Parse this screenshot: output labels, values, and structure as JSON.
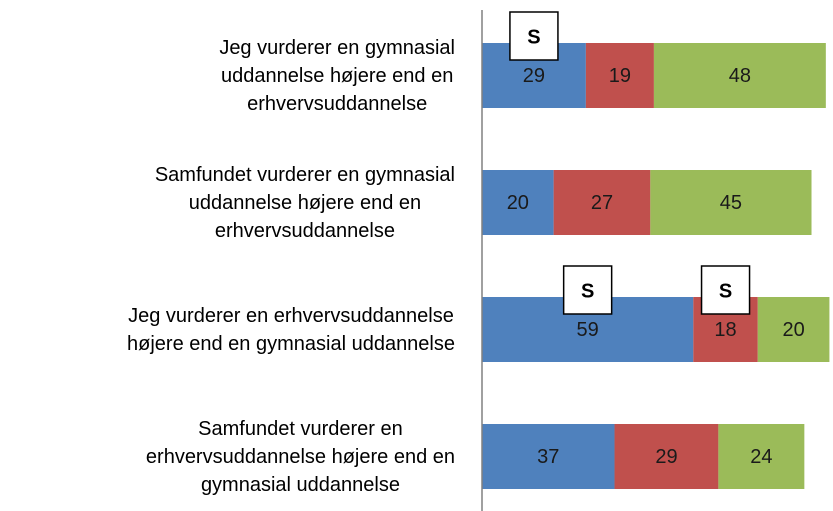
{
  "chart_data": {
    "type": "stacked_bar_horizontal",
    "categories": [
      "Jeg vurderer en gymnasial\nuddannelse højere end en\nerhvervsuddannelse",
      "Samfundet vurderer en gymnasial\nuddannelse højere end en\nerhvervsuddannelse",
      "Jeg vurderer en erhvervsuddannelse\nhøjere end en gymnasial uddannelse",
      "Samfundet vurderer en\nerhvervsuddannelse højere end en\ngymnasial uddannelse"
    ],
    "series": [
      {
        "color": "#4f81bd",
        "values": [
          29,
          20,
          59,
          37
        ]
      },
      {
        "color": "#c0504d",
        "values": [
          19,
          27,
          18,
          29
        ]
      },
      {
        "color": "#9bbb59",
        "values": [
          48,
          45,
          20,
          24
        ]
      }
    ],
    "xlim": [
      0,
      98
    ],
    "annotations": [
      {
        "text": "S",
        "category": 0,
        "series": 0
      },
      {
        "text": "S",
        "category": 2,
        "series": 0
      },
      {
        "text": "S",
        "category": 2,
        "series": 1
      }
    ]
  }
}
